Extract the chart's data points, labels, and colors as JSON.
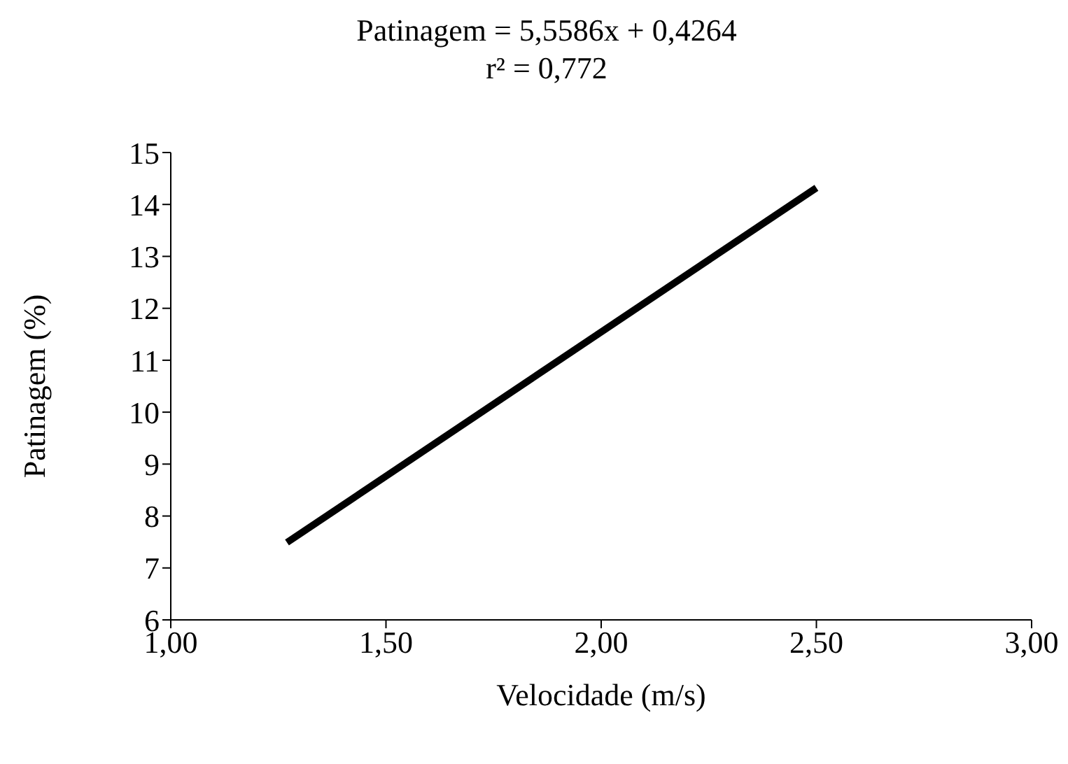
{
  "chart_data": {
    "type": "line",
    "title": "Patinagem = 5,5586x + 0,4264",
    "subtitle": "r² = 0,772",
    "xlabel": "Velocidade (m/s)",
    "ylabel": "Patinagem (%)",
    "x": [
      1.27,
      2.5
    ],
    "series": [
      {
        "color": "#000000",
        "values": [
          7.49,
          14.32
        ]
      }
    ],
    "xlim": [
      1,
      3
    ],
    "xticks": [
      {
        "value": 1,
        "label": "1,00"
      },
      {
        "value": 1.5,
        "label": "1,50"
      },
      {
        "value": 2,
        "label": "2,00"
      },
      {
        "value": 2.5,
        "label": "2,50"
      },
      {
        "value": 3,
        "label": "3,00"
      }
    ],
    "ylim": [
      6,
      15
    ],
    "yticks": [
      6,
      7,
      8,
      9,
      10,
      11,
      12,
      13,
      14,
      15
    ],
    "grid": false,
    "legend": false,
    "marker": "none",
    "line_style": "solid"
  }
}
